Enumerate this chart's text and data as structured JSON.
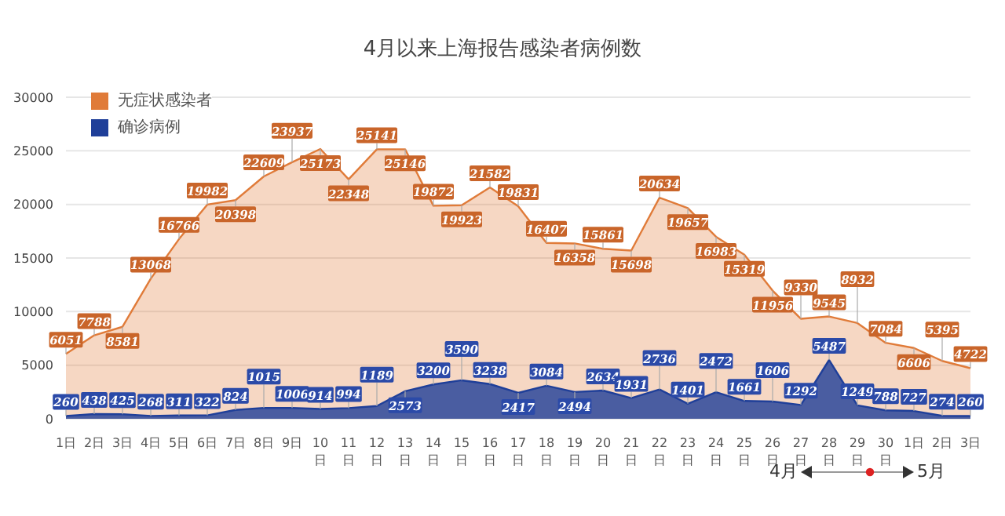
{
  "chart_data": {
    "type": "area",
    "title": "4月以来上海报告感染者病例数",
    "categories": [
      "1日",
      "2日",
      "3日",
      "4日",
      "5日",
      "6日",
      "7日",
      "8日",
      "9日",
      "10日",
      "11日",
      "12日",
      "13日",
      "14日",
      "15日",
      "16日",
      "17日",
      "18日",
      "19日",
      "20日",
      "21日",
      "22日",
      "23日",
      "24日",
      "25日",
      "26日",
      "27日",
      "28日",
      "29日",
      "30日",
      "1日",
      "2日",
      "3日"
    ],
    "series": [
      {
        "name": "无症状感染者",
        "color": "#e07b39",
        "values": [
          6051,
          7788,
          8581,
          13068,
          16766,
          19982,
          20398,
          22609,
          23937,
          25173,
          22348,
          25141,
          25146,
          19872,
          19923,
          21582,
          19831,
          16407,
          16358,
          15861,
          15698,
          20634,
          19657,
          16983,
          15319,
          11956,
          9330,
          9545,
          8932,
          7084,
          6606,
          5395,
          4722
        ]
      },
      {
        "name": "确诊病例",
        "color": "#1f3f99",
        "values": [
          260,
          438,
          425,
          268,
          311,
          322,
          824,
          1015,
          1006,
          914,
          994,
          1189,
          2573,
          3200,
          3590,
          3238,
          2417,
          3084,
          2494,
          2634,
          1931,
          2736,
          1401,
          2472,
          1661,
          1606,
          1292,
          5487,
          1249,
          788,
          727,
          274,
          260
        ]
      }
    ],
    "ylim": [
      0,
      30000
    ],
    "yticks": [
      0,
      5000,
      10000,
      15000,
      20000,
      25000,
      30000
    ],
    "grid": "y",
    "legend": "top left",
    "data_labels": true,
    "marker": "none",
    "annotations": [
      "4月",
      "5月"
    ]
  }
}
